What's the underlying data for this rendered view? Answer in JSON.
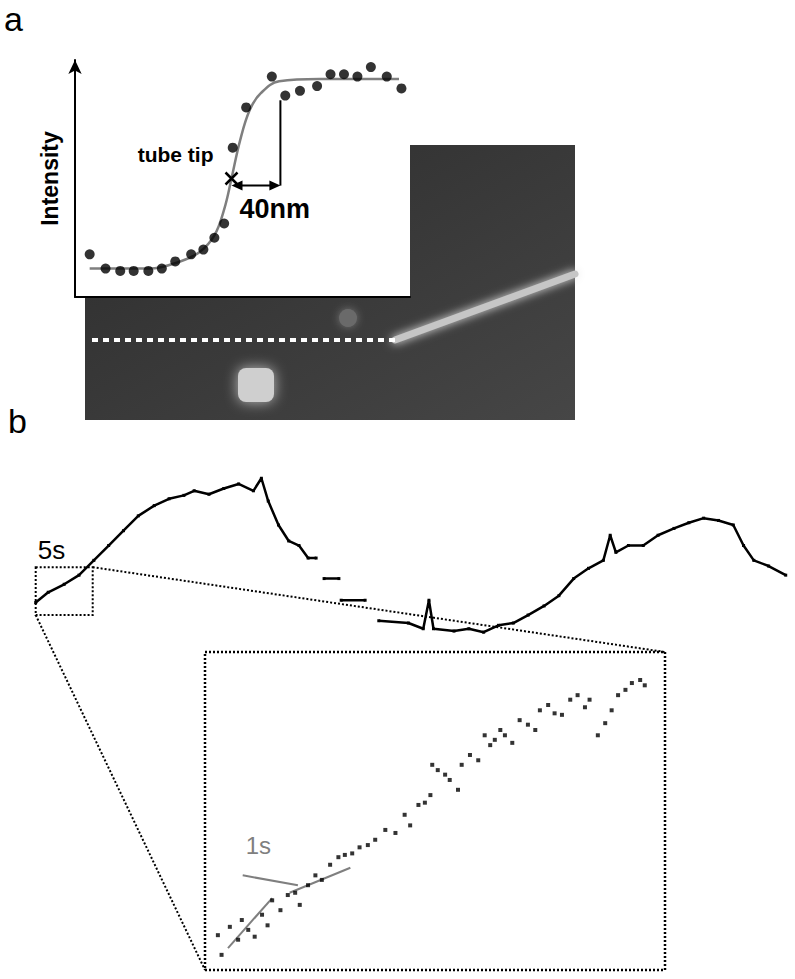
{
  "chart_data": [
    {
      "panel": "a",
      "type": "scatter",
      "y_label": "Intensity",
      "tick_labels": false,
      "xlim": [
        0,
        274
      ],
      "ylim": [
        0,
        1
      ],
      "x": [
        12,
        25,
        37,
        48,
        60,
        71,
        82,
        95,
        105,
        114,
        122,
        129,
        140,
        161,
        172,
        184,
        198,
        209,
        220,
        231,
        242,
        255,
        267
      ],
      "values": [
        0.18,
        0.12,
        0.11,
        0.11,
        0.11,
        0.12,
        0.15,
        0.18,
        0.2,
        0.25,
        0.31,
        0.63,
        0.8,
        0.93,
        0.85,
        0.87,
        0.89,
        0.94,
        0.94,
        0.93,
        0.97,
        0.93,
        0.88
      ],
      "color": "#000000",
      "marker": "circle",
      "fit": {
        "x": [
          12,
          61,
          86,
          102,
          114,
          122,
          128,
          135,
          143,
          152,
          167,
          200,
          265
        ],
        "values": [
          0.12,
          0.12,
          0.15,
          0.19,
          0.26,
          0.37,
          0.5,
          0.66,
          0.79,
          0.86,
          0.91,
          0.92,
          0.92
        ],
        "color": "#7f7f7f"
      },
      "tip": {
        "label": "tube tip",
        "x": 128,
        "y": 0.5,
        "marker": "cross"
      },
      "distance": {
        "label": "40nm",
        "x": [
          128,
          168
        ],
        "y": 0.47,
        "y_top": 0.83
      }
    },
    {
      "panel": "b",
      "type": "line",
      "tick_labels": false,
      "xlim": [
        -0.5,
        66
      ],
      "ylim": [
        -2.5,
        12.5
      ],
      "x": [
        0.0,
        1.1,
        2.5,
        3.8,
        5.1,
        6.4,
        7.7,
        9.0,
        10.4,
        11.7,
        13.0,
        13.9,
        15.2,
        16.5,
        17.8,
        19.1,
        19.8,
        20.4,
        21.3,
        22.2,
        23.1,
        23.9,
        24.6,
        25.0,
        25.3,
        26.6,
        26.7,
        26.8,
        28.9,
        29.5,
        30.1,
        32.7,
        34.0,
        34.5,
        34.9,
        36.7,
        38.0,
        39.3,
        40.6,
        41.9,
        43.2,
        44.6,
        45.9,
        47.2,
        48.5,
        49.8,
        50.4,
        50.9,
        52.0,
        53.3,
        54.6,
        56.0,
        57.3,
        58.6,
        59.9,
        61.2,
        62.1,
        63.0,
        64.3,
        65.8
      ],
      "values": [
        0.7,
        1.6,
        2.3,
        3.1,
        4.4,
        5.7,
        7.0,
        8.3,
        9.2,
        9.8,
        10.1,
        10.5,
        10.2,
        10.7,
        11.1,
        10.5,
        11.6,
        9.6,
        7.5,
        6.1,
        5.7,
        4.6,
        4.6,
        null,
        2.8,
        2.8,
        null,
        0.9,
        0.9,
        null,
        -0.9,
        -1.1,
        -1.6,
        0.9,
        -1.6,
        -1.8,
        -1.6,
        -1.9,
        -1.3,
        -1.1,
        -0.4,
        0.4,
        1.3,
        2.8,
        3.7,
        4.4,
        6.6,
        5.1,
        5.7,
        5.7,
        6.6,
        7.2,
        7.7,
        8.1,
        7.9,
        7.5,
        5.7,
        4.4,
        3.9,
        3.1
      ],
      "color": "#000000",
      "marker": "square",
      "zoom": {
        "label": "5s",
        "xlim": [
          0,
          5
        ],
        "ylim": [
          -0.4,
          3.8
        ]
      }
    },
    {
      "type": "scatter",
      "tick_labels": false,
      "xlim": [
        0,
        5
      ],
      "ylim": [
        -0.4,
        3.8
      ],
      "x": [
        0.14,
        0.18,
        0.27,
        0.36,
        0.4,
        0.47,
        0.54,
        0.62,
        0.68,
        0.73,
        0.82,
        0.9,
        0.98,
        1.03,
        1.12,
        1.2,
        1.27,
        1.36,
        1.45,
        1.52,
        1.6,
        1.68,
        1.77,
        1.85,
        1.96,
        2.07,
        2.17,
        2.23,
        2.32,
        2.39,
        2.45,
        2.47,
        2.53,
        2.61,
        2.66,
        2.75,
        2.79,
        2.88,
        2.97,
        3.04,
        3.1,
        3.15,
        3.21,
        3.26,
        3.34,
        3.42,
        3.51,
        3.59,
        3.64,
        3.73,
        3.8,
        3.88,
        3.97,
        4.05,
        4.13,
        4.18,
        4.27,
        4.35,
        4.42,
        4.49,
        4.57,
        4.64,
        4.73,
        4.78
      ],
      "values": [
        0.06,
        -0.2,
        0.17,
        0.0,
        0.26,
        0.13,
        0.04,
        0.33,
        0.19,
        0.52,
        0.39,
        0.59,
        0.62,
        0.46,
        0.72,
        0.85,
        0.79,
        0.99,
        1.09,
        1.12,
        1.14,
        1.22,
        1.25,
        1.32,
        1.45,
        1.41,
        1.65,
        1.51,
        1.78,
        1.81,
        1.91,
        2.31,
        2.24,
        2.18,
        2.11,
        1.98,
        2.31,
        2.44,
        2.37,
        2.7,
        2.57,
        2.64,
        2.77,
        2.7,
        2.6,
        2.9,
        2.84,
        2.77,
        3.03,
        3.1,
        2.99,
        2.97,
        3.17,
        3.23,
        3.07,
        3.17,
        2.7,
        2.86,
        3.03,
        3.23,
        3.3,
        3.39,
        3.43,
        3.36
      ],
      "color": "#000000",
      "marker": "square",
      "step_fits": {
        "label": "1s",
        "label_x": 0.58,
        "label_y": 1.25,
        "color": "#7f7f7f",
        "lines": [
          {
            "x": [
              0.25,
              0.73
            ],
            "y": [
              -0.11,
              0.55
            ]
          },
          {
            "x": [
              0.41,
              1.01
            ],
            "y": [
              0.85,
              0.72
            ]
          },
          {
            "x": [
              0.92,
              1.58
            ],
            "y": [
              0.62,
              0.95
            ]
          }
        ]
      }
    }
  ]
}
